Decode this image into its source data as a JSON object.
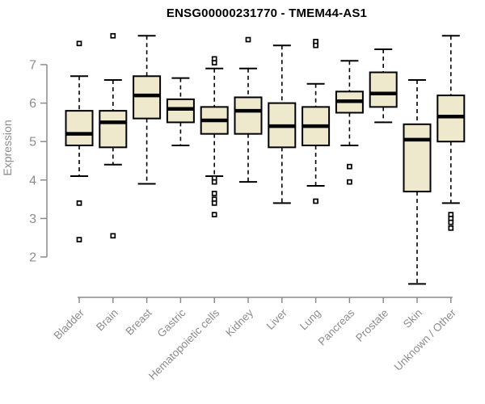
{
  "chart_data": {
    "type": "boxplot",
    "title": "ENSG00000231770 - TMEM44-AS1",
    "ylabel": "Expression",
    "xlabel": "",
    "ylim": [
      1.2,
      7.9
    ],
    "yticks": [
      2,
      3,
      4,
      5,
      6,
      7
    ],
    "grid": false,
    "legend": "none",
    "categories": [
      "Bladder",
      "Brain",
      "Breast",
      "Gastric",
      "Hematopoietic cells",
      "Kidney",
      "Liver",
      "Lung",
      "Pancreas",
      "Prostate",
      "Skin",
      "Unknown / Other"
    ],
    "series": [
      {
        "name": "Bladder",
        "low": 4.1,
        "q1": 4.9,
        "median": 5.2,
        "q3": 5.8,
        "high": 6.7,
        "outliers": [
          7.55,
          3.4,
          2.45
        ]
      },
      {
        "name": "Brain",
        "low": 4.4,
        "q1": 4.85,
        "median": 5.5,
        "q3": 5.8,
        "high": 6.6,
        "outliers": [
          7.75,
          2.55
        ]
      },
      {
        "name": "Breast",
        "low": 3.9,
        "q1": 5.6,
        "median": 6.2,
        "q3": 6.7,
        "high": 7.75,
        "outliers": []
      },
      {
        "name": "Gastric",
        "low": 4.9,
        "q1": 5.5,
        "median": 5.85,
        "q3": 6.1,
        "high": 6.65,
        "outliers": []
      },
      {
        "name": "Hematopoietic cells",
        "low": 4.1,
        "q1": 5.2,
        "median": 5.55,
        "q3": 5.9,
        "high": 6.9,
        "outliers": [
          7.15,
          7.05,
          4.05,
          3.95,
          3.65,
          3.5,
          3.4,
          3.1
        ]
      },
      {
        "name": "Kidney",
        "low": 3.95,
        "q1": 5.2,
        "median": 5.8,
        "q3": 6.15,
        "high": 6.9,
        "outliers": [
          7.65
        ]
      },
      {
        "name": "Liver",
        "low": 3.4,
        "q1": 4.85,
        "median": 5.4,
        "q3": 6.0,
        "high": 7.5,
        "outliers": []
      },
      {
        "name": "Lung",
        "low": 3.85,
        "q1": 4.9,
        "median": 5.4,
        "q3": 5.9,
        "high": 6.5,
        "outliers": [
          7.6,
          7.5,
          3.45
        ]
      },
      {
        "name": "Pancreas",
        "low": 4.9,
        "q1": 5.75,
        "median": 6.05,
        "q3": 6.3,
        "high": 7.1,
        "outliers": [
          4.35,
          3.95
        ]
      },
      {
        "name": "Prostate",
        "low": 5.5,
        "q1": 5.9,
        "median": 6.25,
        "q3": 6.8,
        "high": 7.4,
        "outliers": []
      },
      {
        "name": "Skin",
        "low": 1.3,
        "q1": 3.7,
        "median": 5.05,
        "q3": 5.45,
        "high": 6.6,
        "outliers": []
      },
      {
        "name": "Unknown / Other",
        "low": 3.4,
        "q1": 5.0,
        "median": 5.65,
        "q3": 6.2,
        "high": 7.75,
        "outliers": [
          3.1,
          3.0,
          2.9,
          2.75
        ]
      }
    ],
    "colors": {
      "box_fill": "#EEE8CD",
      "box_border": "#000000",
      "median": "#000000",
      "whisker": "#000000",
      "axis": "#8C8C8C",
      "title": "#000000",
      "background": "#FFFFFF"
    }
  }
}
